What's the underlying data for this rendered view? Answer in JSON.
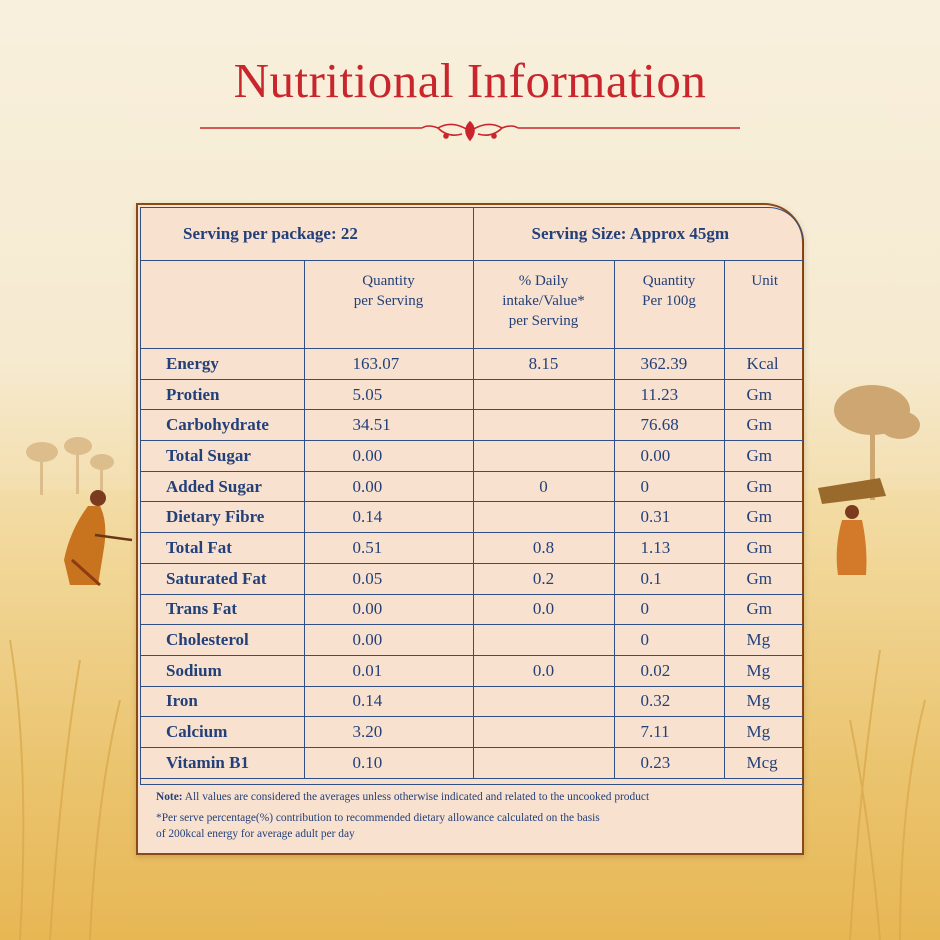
{
  "title": "Nutritional Information",
  "header": {
    "serving_per_package": "Serving per package: 22",
    "serving_size": "Serving Size: Approx 45gm"
  },
  "columns": {
    "qty_serving": [
      "Quantity",
      "per Serving"
    ],
    "daily_value": [
      "% Daily",
      "intake/Value*",
      "per Serving"
    ],
    "qty_100g": [
      "Quantity",
      "Per 100g"
    ],
    "unit": [
      "Unit"
    ]
  },
  "rows": [
    {
      "name": "Energy",
      "qty": "163.07",
      "dv": "8.15",
      "per100": "362.39",
      "unit": "Kcal"
    },
    {
      "name": "Protien",
      "qty": "5.05",
      "dv": "",
      "per100": "11.23",
      "unit": "Gm"
    },
    {
      "name": "Carbohydrate",
      "qty": "34.51",
      "dv": "",
      "per100": "76.68",
      "unit": "Gm"
    },
    {
      "name": "Total Sugar",
      "qty": "0.00",
      "dv": "",
      "per100": "0.00",
      "unit": "Gm"
    },
    {
      "name": "Added Sugar",
      "qty": "0.00",
      "dv": "0",
      "per100": "0",
      "unit": "Gm"
    },
    {
      "name": "Dietary Fibre",
      "qty": "0.14",
      "dv": "",
      "per100": "0.31",
      "unit": "Gm"
    },
    {
      "name": "Total Fat",
      "qty": "0.51",
      "dv": "0.8",
      "per100": "1.13",
      "unit": "Gm"
    },
    {
      "name": "Saturated Fat",
      "qty": "0.05",
      "dv": "0.2",
      "per100": "0.1",
      "unit": "Gm"
    },
    {
      "name": "Trans Fat",
      "qty": "0.00",
      "dv": "0.0",
      "per100": "0",
      "unit": "Gm"
    },
    {
      "name": "Cholesterol",
      "qty": "0.00",
      "dv": "",
      "per100": "0",
      "unit": "Mg"
    },
    {
      "name": "Sodium",
      "qty": "0.01",
      "dv": "0.0",
      "per100": "0.02",
      "unit": "Mg"
    },
    {
      "name": "Iron",
      "qty": "0.14",
      "dv": "",
      "per100": "0.32",
      "unit": "Mg"
    },
    {
      "name": "Calcium",
      "qty": "3.20",
      "dv": "",
      "per100": "7.11",
      "unit": "Mg"
    },
    {
      "name": "Vitamin B1",
      "qty": "0.10",
      "dv": "",
      "per100": "0.23",
      "unit": "Mcg"
    }
  ],
  "notes": {
    "note_label": "Note:",
    "note_text": " All values are considered the averages unless otherwise indicated and related to the uncooked product",
    "footnote_line1": "*Per serve percentage(%) contribution to recommended dietary allowance calculated on the basis",
    "footnote_line2": "of 200kcal energy for average adult per day"
  },
  "colors": {
    "title_red": "#c8262c",
    "table_blue": "#23407a",
    "card_fill": "#f8e2cf",
    "card_border": "#8a4a18"
  }
}
